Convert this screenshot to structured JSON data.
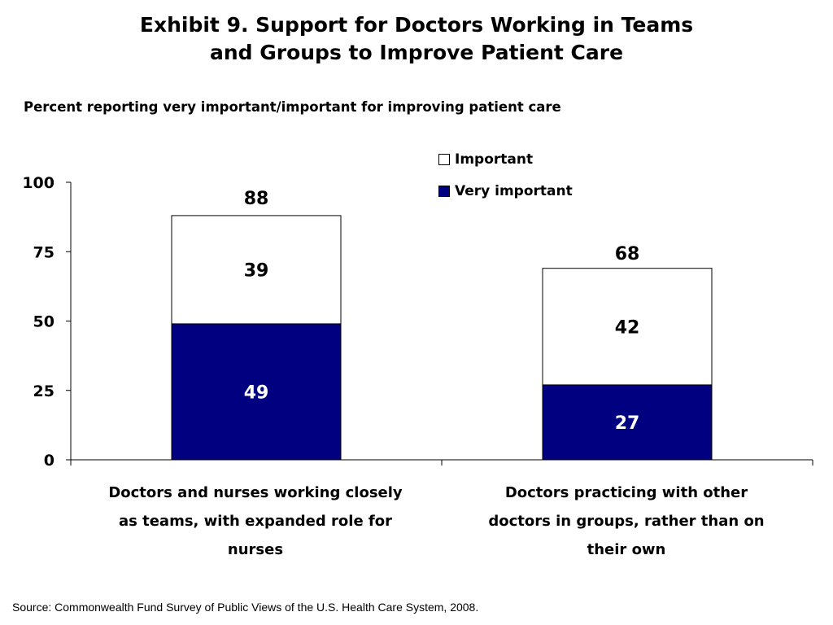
{
  "slide": {
    "title_line1": "Exhibit 9. Support for Doctors Working in Teams",
    "title_line2": "and Groups to Improve Patient Care",
    "subtitle": "Percent reporting very important/important for improving patient care",
    "source": "Source: Commonwealth Fund Survey of Public Views of the U.S. Health Care System, 2008."
  },
  "chart_data": {
    "type": "bar",
    "stacked": true,
    "categories": [
      "Doctors and nurses working closely as teams, with expanded role for nurses",
      "Doctors practicing with other doctors in groups, rather than on their own"
    ],
    "category_lines": [
      [
        "Doctors and nurses working closely",
        "as teams, with expanded role for",
        "nurses"
      ],
      [
        "Doctors practicing with other",
        "doctors in groups, rather than on",
        "their own"
      ]
    ],
    "series": [
      {
        "name": "Very important",
        "values": [
          49,
          27
        ],
        "color": "#000080",
        "label_color": "#ffffff"
      },
      {
        "name": "Important",
        "values": [
          39,
          42
        ],
        "color": "#ffffff",
        "label_color": "#000000"
      }
    ],
    "totals": [
      88,
      68
    ],
    "yticks": [
      "0",
      "25",
      "50",
      "75",
      "100"
    ],
    "ylim": [
      0,
      100
    ],
    "grid": false,
    "legend_position": "top-right"
  }
}
